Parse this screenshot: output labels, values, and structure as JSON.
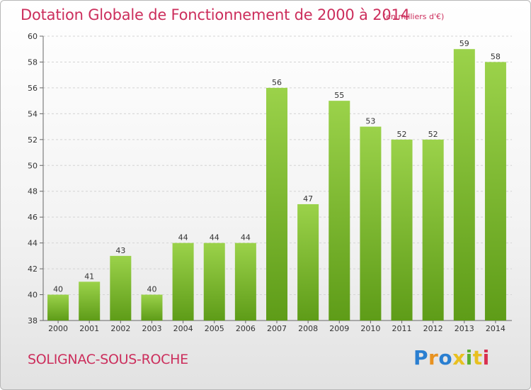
{
  "title": "Dotation Globale de Fonctionnement de 2000 à 2014",
  "subtitle": "(en milliers d'€)",
  "commune": "SOLIGNAC-SOUS-ROCHE",
  "logo": {
    "text": "Proxiti",
    "letters": [
      "P",
      "r",
      "o",
      "x",
      "i",
      "t",
      "i"
    ],
    "colors": [
      "#2a7fd1",
      "#e89220",
      "#2a7fd1",
      "#e8c020",
      "#5ab030",
      "#e8c020",
      "#d83050"
    ]
  },
  "colors": {
    "title": "#cc2e5c",
    "bar_light": "#9bd24a",
    "bar_dark": "#5e9c18"
  },
  "chart_data": {
    "type": "bar",
    "categories": [
      "2000",
      "2001",
      "2002",
      "2003",
      "2004",
      "2005",
      "2006",
      "2007",
      "2008",
      "2009",
      "2010",
      "2011",
      "2012",
      "2013",
      "2014"
    ],
    "values": [
      40,
      41,
      43,
      40,
      44,
      44,
      44,
      56,
      47,
      55,
      53,
      52,
      52,
      59,
      58
    ],
    "ylim": [
      38,
      60
    ],
    "yticks": [
      38,
      40,
      42,
      44,
      46,
      48,
      50,
      52,
      54,
      56,
      58,
      60
    ],
    "grid": true
  }
}
